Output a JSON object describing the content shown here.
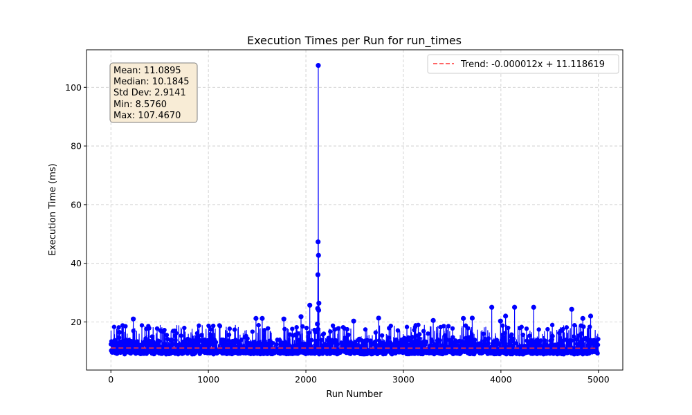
{
  "chart_data": {
    "type": "line",
    "title": "Execution Times per Run for run_times",
    "xlabel": "Run Number",
    "ylabel": "Execution Time (ms)",
    "xlim": [
      -250,
      5250
    ],
    "ylim": [
      3.6,
      112.8
    ],
    "xticks": [
      0,
      1000,
      2000,
      3000,
      4000,
      5000
    ],
    "yticks": [
      20,
      40,
      60,
      80,
      100
    ],
    "grid": true,
    "legend_position": "top-right",
    "colors": {
      "series": "#0000ff",
      "trend": "#ff3333",
      "stats_box_fill": "#f8ecd6",
      "stats_box_edge": "#7f7f7f",
      "grid": "#c8c8c8"
    },
    "series": [
      {
        "name": "",
        "n_runs": 5000,
        "baseline_range": [
          8.576,
          19.0
        ],
        "peaks": [
          {
            "x": 230,
            "y": 21.0
          },
          {
            "x": 1488,
            "y": 21.2
          },
          {
            "x": 1552,
            "y": 21.2
          },
          {
            "x": 1774,
            "y": 21.0
          },
          {
            "x": 1950,
            "y": 21.8
          },
          {
            "x": 2040,
            "y": 25.7
          },
          {
            "x": 2118,
            "y": 19.3
          },
          {
            "x": 2121,
            "y": 24.6
          },
          {
            "x": 2123,
            "y": 36.1
          },
          {
            "x": 2125,
            "y": 47.3
          },
          {
            "x": 2127,
            "y": 107.467
          },
          {
            "x": 2129,
            "y": 42.7
          },
          {
            "x": 2131,
            "y": 24.0
          },
          {
            "x": 2133,
            "y": 26.4
          },
          {
            "x": 2490,
            "y": 20.3
          },
          {
            "x": 2746,
            "y": 21.3
          },
          {
            "x": 3306,
            "y": 20.5
          },
          {
            "x": 3615,
            "y": 21.2
          },
          {
            "x": 3706,
            "y": 21.3
          },
          {
            "x": 3906,
            "y": 25.0
          },
          {
            "x": 3996,
            "y": 20.3
          },
          {
            "x": 4048,
            "y": 22.0
          },
          {
            "x": 4140,
            "y": 25.0
          },
          {
            "x": 4336,
            "y": 25.0
          },
          {
            "x": 4726,
            "y": 24.3
          },
          {
            "x": 4840,
            "y": 21.2
          },
          {
            "x": 4920,
            "y": 22.0
          }
        ]
      }
    ],
    "trend": {
      "label": "Trend: -0.000012x + 11.118619",
      "slope": -1.2e-05,
      "intercept": 11.118619
    },
    "stats": [
      "Mean: 11.0895",
      "Median: 10.1845",
      "Std Dev: 2.9141",
      "Min: 8.5760",
      "Max: 107.4670"
    ]
  }
}
